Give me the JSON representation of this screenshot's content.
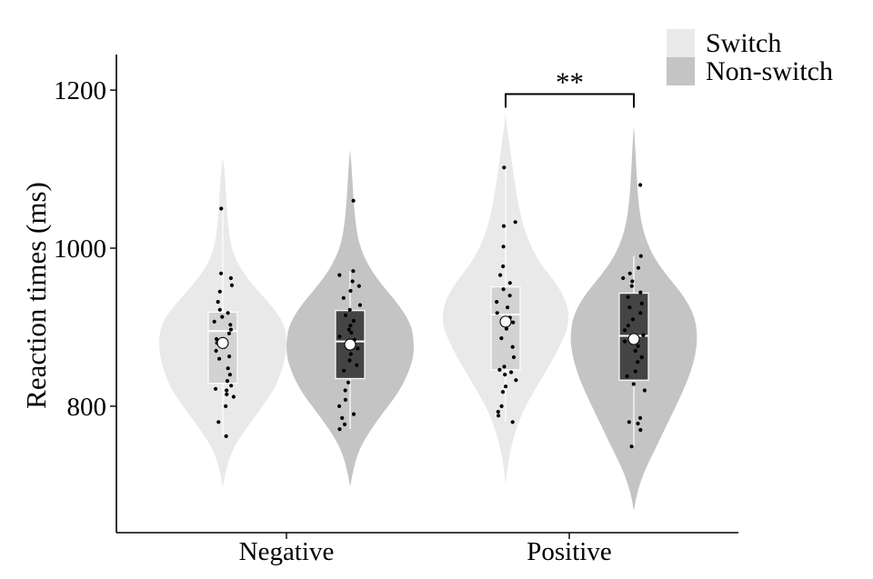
{
  "chart_data": {
    "type": "violin",
    "ylabel": "Reaction times (ms)",
    "xlabel": "",
    "categories": [
      "Negative",
      "Positive"
    ],
    "ylim": [
      640,
      1245
    ],
    "yticks": [
      800,
      1000,
      1200
    ],
    "grid": false,
    "legend_position": "top-right",
    "series": [
      {
        "name": "Switch",
        "color": "#e9e9e9",
        "box_color": "#d2d2d2",
        "groups": [
          {
            "category": "Negative",
            "violin_min": 697,
            "violin_max": 1115,
            "density": [
              [
                697,
                0.0
              ],
              [
                720,
                0.05
              ],
              [
                745,
                0.15
              ],
              [
                770,
                0.35
              ],
              [
                795,
                0.58
              ],
              [
                820,
                0.8
              ],
              [
                845,
                0.93
              ],
              [
                870,
                1.0
              ],
              [
                890,
                1.0
              ],
              [
                910,
                0.93
              ],
              [
                935,
                0.68
              ],
              [
                960,
                0.4
              ],
              [
                985,
                0.2
              ],
              [
                1010,
                0.11
              ],
              [
                1040,
                0.07
              ],
              [
                1070,
                0.05
              ],
              [
                1095,
                0.03
              ],
              [
                1115,
                0.0
              ]
            ],
            "box": {
              "q1": 829,
              "median": 895,
              "q3": 919,
              "whisker_low": 762,
              "whisker_high": 1050
            },
            "mean": 880,
            "points": [
              762,
              780,
              800,
              812,
              815,
              820,
              822,
              826,
              832,
              840,
              848,
              860,
              863,
              870,
              875,
              880,
              885,
              892,
              897,
              903,
              907,
              913,
              918,
              922,
              932,
              945,
              953,
              962,
              968,
              1050
            ]
          },
          {
            "category": "Positive",
            "violin_min": 700,
            "violin_max": 1170,
            "density": [
              [
                700,
                0.0
              ],
              [
                730,
                0.04
              ],
              [
                760,
                0.12
              ],
              [
                790,
                0.25
              ],
              [
                820,
                0.45
              ],
              [
                850,
                0.68
              ],
              [
                880,
                0.88
              ],
              [
                905,
                1.0
              ],
              [
                930,
                0.97
              ],
              [
                955,
                0.8
              ],
              [
                980,
                0.55
              ],
              [
                1005,
                0.38
              ],
              [
                1030,
                0.27
              ],
              [
                1060,
                0.19
              ],
              [
                1090,
                0.13
              ],
              [
                1120,
                0.08
              ],
              [
                1150,
                0.03
              ],
              [
                1170,
                0.0
              ]
            ],
            "box": {
              "q1": 846,
              "median": 916,
              "q3": 951,
              "whisker_low": 780,
              "whisker_high": 1102
            },
            "mean": 907,
            "points": [
              780,
              788,
              793,
              800,
              818,
              825,
              833,
              840,
              843,
              846,
              850,
              862,
              875,
              886,
              898,
              906,
              912,
              918,
              925,
              932,
              940,
              948,
              956,
              966,
              977,
              1002,
              1028,
              1033,
              1102
            ]
          }
        ]
      },
      {
        "name": "Non-switch",
        "color": "#c4c4c4",
        "box_color": "#444444",
        "groups": [
          {
            "category": "Negative",
            "violin_min": 698,
            "violin_max": 1125,
            "density": [
              [
                698,
                0.0
              ],
              [
                720,
                0.05
              ],
              [
                745,
                0.14
              ],
              [
                770,
                0.32
              ],
              [
                795,
                0.55
              ],
              [
                820,
                0.78
              ],
              [
                845,
                0.93
              ],
              [
                865,
                1.0
              ],
              [
                885,
                1.0
              ],
              [
                905,
                0.95
              ],
              [
                930,
                0.75
              ],
              [
                955,
                0.48
              ],
              [
                980,
                0.27
              ],
              [
                1005,
                0.14
              ],
              [
                1035,
                0.08
              ],
              [
                1065,
                0.05
              ],
              [
                1095,
                0.03
              ],
              [
                1125,
                0.0
              ]
            ],
            "box": {
              "q1": 835,
              "median": 882,
              "q3": 921,
              "whisker_low": 771,
              "whisker_high": 971
            },
            "mean": 878,
            "points": [
              771,
              777,
              785,
              790,
              800,
              808,
              820,
              830,
              845,
              852,
              858,
              866,
              873,
              880,
              884,
              888,
              893,
              897,
              902,
              908,
              915,
              922,
              928,
              937,
              946,
              952,
              958,
              966,
              971,
              1060
            ]
          },
          {
            "category": "Positive",
            "violin_min": 668,
            "violin_max": 1155,
            "density": [
              [
                668,
                0.0
              ],
              [
                690,
                0.05
              ],
              [
                715,
                0.15
              ],
              [
                740,
                0.3
              ],
              [
                765,
                0.45
              ],
              [
                790,
                0.6
              ],
              [
                815,
                0.75
              ],
              [
                840,
                0.88
              ],
              [
                865,
                0.97
              ],
              [
                890,
                1.0
              ],
              [
                915,
                0.95
              ],
              [
                940,
                0.78
              ],
              [
                965,
                0.52
              ],
              [
                990,
                0.3
              ],
              [
                1015,
                0.17
              ],
              [
                1040,
                0.1
              ],
              [
                1070,
                0.06
              ],
              [
                1100,
                0.04
              ],
              [
                1130,
                0.02
              ],
              [
                1155,
                0.0
              ]
            ],
            "box": {
              "q1": 833,
              "median": 889,
              "q3": 943,
              "whisker_low": 749,
              "whisker_high": 990
            },
            "mean": 885,
            "points": [
              749,
              770,
              778,
              780,
              785,
              820,
              828,
              838,
              844,
              856,
              862,
              870,
              876,
              882,
              890,
              896,
              902,
              910,
              918,
              925,
              930,
              938,
              944,
              952,
              958,
              962,
              968,
              975,
              990,
              1080
            ]
          }
        ]
      }
    ],
    "annotations": [
      {
        "text": "**",
        "between": [
          "Positive/Switch",
          "Positive/Non-switch"
        ],
        "y": 1195
      }
    ]
  }
}
